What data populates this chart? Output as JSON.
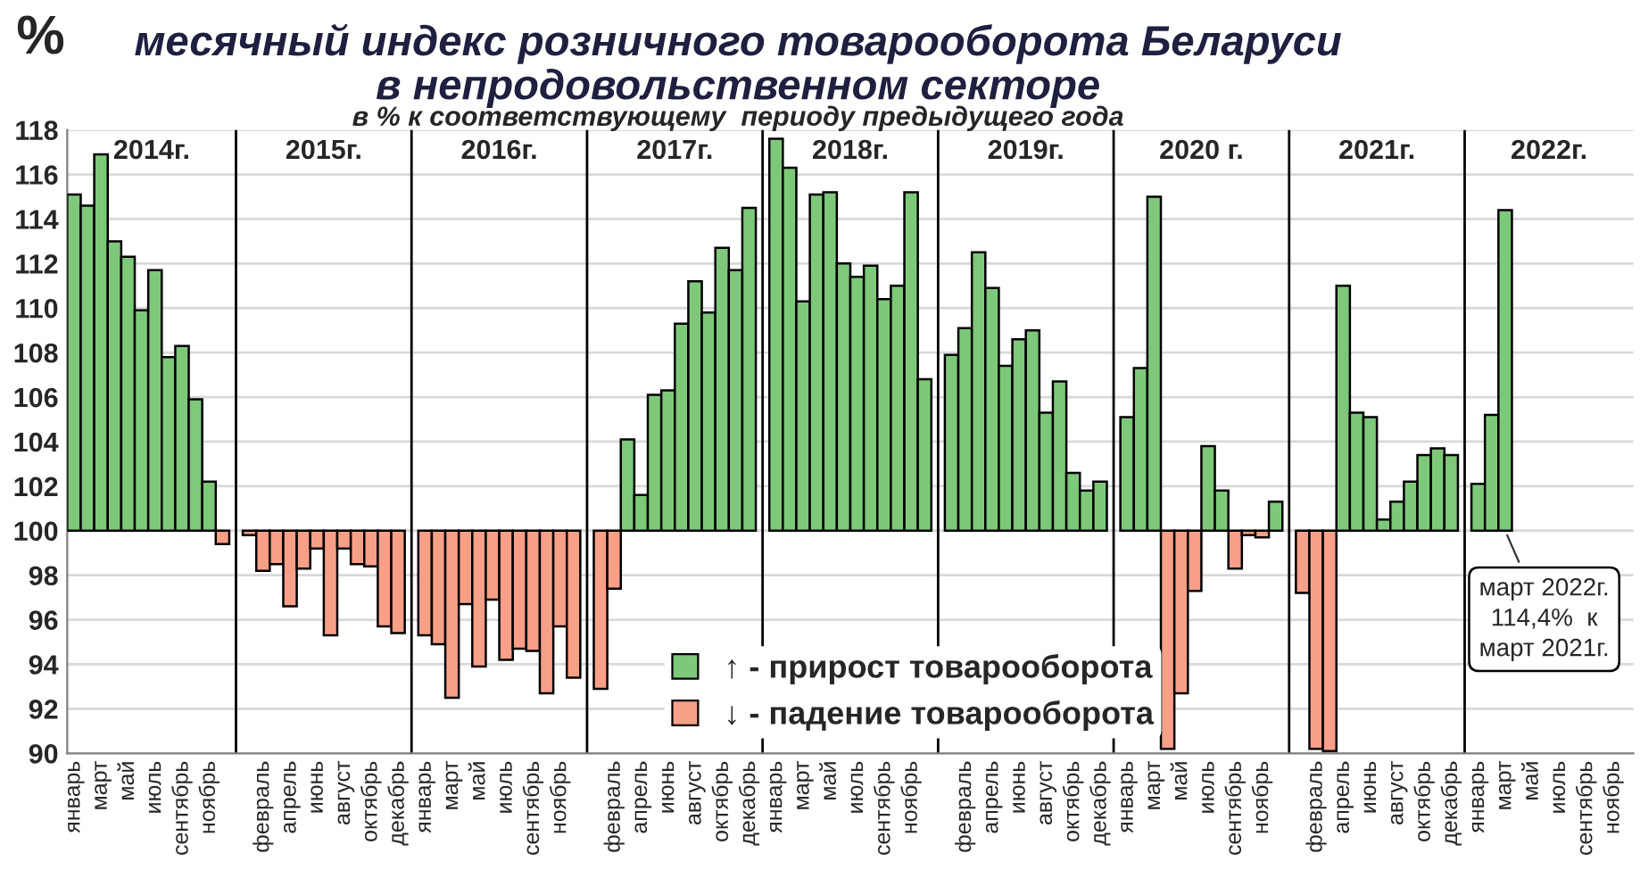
{
  "chart_data": {
    "type": "bar",
    "title": "месячный индекс розничного товарооборота Беларуси\nв непродовольственном секторе",
    "subtitle": "в % к соответствующему  периоду предыдущего года",
    "ylabel": "%",
    "categories": [
      "январь",
      null,
      "март",
      null,
      "май",
      null,
      "июль",
      null,
      "сентябрь",
      null,
      "ноябрь",
      null,
      null,
      null,
      "февраль",
      null,
      "апрель",
      null,
      "июнь",
      null,
      "август",
      null,
      "октябрь",
      null,
      "декабрь",
      null,
      "январь",
      null,
      "март",
      null,
      "май",
      null,
      "июль",
      null,
      "сентябрь",
      null,
      "ноябрь",
      null,
      null,
      null,
      "февраль",
      null,
      "апрель",
      null,
      "июнь",
      null,
      "август",
      null,
      "октябрь",
      null,
      "декабрь",
      null,
      "январь",
      null,
      "март",
      null,
      "май",
      null,
      "июль",
      null,
      "сентябрь",
      null,
      "ноябрь",
      null,
      null,
      null,
      "февраль",
      null,
      "апрель",
      null,
      "июнь",
      null,
      "август",
      null,
      "октябрь",
      null,
      "декабрь",
      null,
      "январь",
      null,
      "март",
      null,
      "май",
      null,
      "июль",
      null,
      "сентябрь",
      null,
      "ноябрь",
      null,
      null,
      null,
      "февраль",
      null,
      "апрель",
      null,
      "июнь",
      null,
      "август",
      null,
      "октябрь",
      null,
      "декабрь",
      null,
      "январь",
      null,
      "март",
      null,
      "май",
      null,
      "июль",
      null,
      "сентябрь",
      null,
      "ноябрь",
      null
    ],
    "series": [
      {
        "name": "↑ - прирост товарооборота",
        "color": "#7ec87a",
        "base": [
          100,
          100,
          100,
          100,
          100,
          100,
          100,
          100,
          100,
          100,
          100,
          null,
          null,
          null,
          null,
          null,
          null,
          null,
          null,
          null,
          null,
          null,
          null,
          null,
          null,
          null,
          null,
          null,
          null,
          null,
          null,
          null,
          null,
          null,
          null,
          null,
          null,
          null,
          null,
          null,
          null,
          100,
          100,
          100,
          100,
          100,
          100,
          100,
          100,
          100,
          100,
          null,
          100,
          100,
          100,
          100,
          100,
          100,
          100,
          100,
          100,
          100,
          100,
          100,
          null,
          100,
          100,
          100,
          100,
          100,
          100,
          100,
          100,
          100,
          100,
          100,
          100,
          null,
          100,
          100,
          100,
          null,
          null,
          null,
          100,
          100,
          null,
          null,
          null,
          100,
          null,
          null,
          null,
          null,
          100,
          100,
          100,
          100,
          100,
          100,
          100,
          100,
          100,
          null,
          100,
          100,
          100,
          null,
          null,
          null,
          null,
          null,
          null,
          null,
          null,
          null
        ],
        "values": [
          15.1,
          14.6,
          16.9,
          13.0,
          12.3,
          9.9,
          11.7,
          7.8,
          8.3,
          5.9,
          2.2,
          null,
          null,
          null,
          null,
          null,
          null,
          null,
          null,
          null,
          null,
          null,
          null,
          null,
          null,
          null,
          null,
          null,
          null,
          null,
          null,
          null,
          null,
          null,
          null,
          null,
          null,
          null,
          null,
          null,
          null,
          4.1,
          1.6,
          6.1,
          6.3,
          9.3,
          11.2,
          9.8,
          12.7,
          11.7,
          14.5,
          null,
          17.6,
          16.3,
          10.3,
          15.1,
          15.2,
          12.0,
          11.4,
          11.9,
          10.4,
          11.0,
          15.2,
          6.8,
          null,
          7.9,
          9.1,
          12.5,
          10.9,
          7.4,
          8.6,
          9.0,
          5.3,
          6.7,
          2.6,
          1.8,
          2.2,
          null,
          5.1,
          7.3,
          15.0,
          null,
          null,
          null,
          3.8,
          1.8,
          null,
          null,
          null,
          1.3,
          null,
          null,
          null,
          null,
          11.0,
          5.3,
          5.1,
          0.5,
          1.3,
          2.2,
          3.4,
          3.7,
          3.4,
          null,
          2.1,
          5.2,
          14.4,
          null,
          null,
          null,
          null,
          null,
          null,
          null,
          null,
          null
        ]
      },
      {
        "name": "↓ - падение товарооборота",
        "color": "#f89f88",
        "base": [
          null,
          null,
          null,
          null,
          null,
          null,
          null,
          null,
          null,
          null,
          null,
          100,
          null,
          100,
          100,
          100,
          100,
          100,
          100,
          100,
          100,
          100,
          100,
          100,
          100,
          null,
          100,
          100,
          100,
          100,
          100,
          100,
          100,
          100,
          100,
          100,
          100,
          100,
          null,
          100,
          100,
          null,
          null,
          null,
          null,
          null,
          null,
          null,
          null,
          null,
          null,
          null,
          null,
          null,
          null,
          null,
          null,
          null,
          null,
          null,
          null,
          null,
          null,
          null,
          null,
          null,
          null,
          null,
          null,
          null,
          null,
          null,
          null,
          null,
          null,
          null,
          null,
          null,
          null,
          null,
          null,
          100,
          100,
          100,
          null,
          null,
          100,
          100,
          100,
          null,
          null,
          100,
          100,
          100,
          null,
          null,
          null,
          null,
          null,
          null,
          null,
          null,
          null,
          null,
          null,
          null,
          null,
          null,
          null,
          null,
          null,
          null,
          null,
          null,
          null,
          null
        ],
        "values": [
          null,
          null,
          null,
          null,
          null,
          null,
          null,
          null,
          null,
          null,
          null,
          -0.6,
          null,
          -0.2,
          -1.8,
          -1.5,
          -3.4,
          -1.7,
          -0.8,
          -4.7,
          -0.8,
          -1.5,
          -1.6,
          -4.3,
          -4.6,
          null,
          -4.7,
          -5.1,
          -7.5,
          -3.3,
          -6.1,
          -3.1,
          -5.8,
          -5.3,
          -5.4,
          -7.3,
          -4.3,
          -6.6,
          null,
          -7.1,
          -2.6,
          null,
          null,
          null,
          null,
          null,
          null,
          null,
          null,
          null,
          null,
          null,
          null,
          null,
          null,
          null,
          null,
          null,
          null,
          null,
          null,
          null,
          null,
          null,
          null,
          null,
          null,
          null,
          null,
          null,
          null,
          null,
          null,
          null,
          null,
          null,
          null,
          null,
          null,
          null,
          null,
          -9.8,
          -7.3,
          -2.7,
          null,
          null,
          -1.7,
          -0.2,
          -0.3,
          null,
          null,
          -2.8,
          -9.8,
          -9.9,
          null,
          null,
          null,
          null,
          null,
          null,
          null,
          null,
          null,
          null,
          null,
          null,
          null,
          null,
          null,
          null,
          null,
          null,
          null,
          null,
          null,
          null
        ]
      }
    ],
    "ylim": [
      90,
      118
    ],
    "yticks": [
      90,
      92,
      94,
      96,
      98,
      100,
      102,
      104,
      106,
      108,
      110,
      112,
      114,
      116,
      118
    ],
    "grid": "y",
    "legend": "bottom",
    "annotations": [
      "2014г.",
      "2015г.",
      "2016г.",
      "2017г.",
      "2018г.",
      "2019г.",
      "2020 г.",
      "2021г.",
      "2022г.",
      "март 2022г.\n114,4%  к\nмарт 2021г."
    ]
  }
}
